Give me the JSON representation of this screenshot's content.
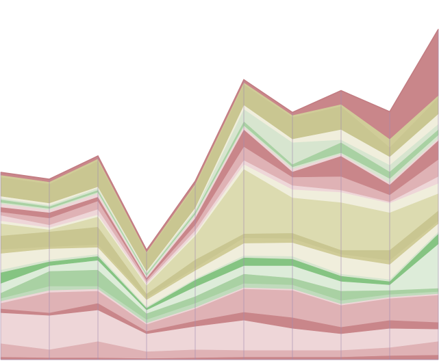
{
  "chart_data": {
    "type": "area",
    "stacked": true,
    "x": [
      0,
      1,
      2,
      3,
      4,
      5,
      6,
      7,
      8,
      9
    ],
    "ylim": [
      0,
      528
    ],
    "series": [
      {
        "color": "#c9868a",
        "values": [
          4,
          3,
          3,
          2,
          3,
          4,
          4,
          4,
          6,
          7
        ]
      },
      {
        "color": "#dfb2b5",
        "values": [
          20,
          12,
          24,
          10,
          12,
          10,
          10,
          10,
          12,
          20
        ]
      },
      {
        "color": "#eed6d8",
        "values": [
          45,
          50,
          46,
          26,
          34,
          44,
          32,
          24,
          28,
          18
        ]
      },
      {
        "color": "#c9868a",
        "values": [
          6,
          4,
          10,
          4,
          8,
          12,
          16,
          10,
          12,
          10
        ]
      },
      {
        "color": "#dfb2b5",
        "values": [
          8,
          30,
          18,
          10,
          18,
          34,
          40,
          32,
          32,
          40
        ]
      },
      {
        "color": "#eed6d8",
        "values": [
          3,
          3,
          3,
          2,
          2,
          2,
          2,
          2,
          2,
          2
        ]
      },
      {
        "color": "#c0dbbc",
        "values": [
          4,
          6,
          4,
          5,
          6,
          6,
          6,
          5,
          4,
          3
        ]
      },
      {
        "color": "#a9d1a3",
        "values": [
          8,
          22,
          24,
          9,
          10,
          14,
          10,
          14,
          6,
          5
        ]
      },
      {
        "color": "#ddecd9",
        "values": [
          14,
          8,
          14,
          5,
          14,
          12,
          18,
          14,
          8,
          65
        ]
      },
      {
        "color": "#85c482",
        "values": [
          16,
          6,
          6,
          3,
          10,
          12,
          10,
          8,
          5,
          15
        ]
      },
      {
        "color": "#d7e5cf",
        "values": [
          4,
          3,
          3,
          2,
          2,
          3,
          4,
          3,
          3,
          3
        ]
      },
      {
        "color": "#f0eedc",
        "values": [
          24,
          16,
          10,
          10,
          12,
          18,
          20,
          25,
          22,
          12
        ]
      },
      {
        "color": "#d0cc98",
        "values": [
          6,
          3,
          4,
          3,
          4,
          8,
          6,
          4,
          6,
          4
        ]
      },
      {
        "color": "#c9c691",
        "values": [
          20,
          22,
          26,
          6,
          12,
          6,
          8,
          6,
          15,
          15
        ]
      },
      {
        "color": "#dcdbb0",
        "values": [
          18,
          3,
          15,
          12,
          35,
          95,
          52,
          70,
          55,
          25
        ]
      },
      {
        "color": "#f0eedc",
        "values": [
          4,
          3,
          3,
          2,
          3,
          7,
          12,
          15,
          14,
          15
        ]
      },
      {
        "color": "#eed6d8",
        "values": [
          8,
          4,
          8,
          3,
          5,
          6,
          6,
          3,
          2,
          10
        ]
      },
      {
        "color": "#dfb2b5",
        "values": [
          5,
          10,
          12,
          3,
          8,
          20,
          12,
          20,
          10,
          25
        ]
      },
      {
        "color": "#c9868a",
        "values": [
          7,
          8,
          6,
          3,
          10,
          25,
          8,
          30,
          15,
          28
        ]
      },
      {
        "color": "#eed6d8",
        "values": [
          5,
          4,
          5,
          2,
          4,
          4,
          4,
          3,
          3,
          3
        ]
      },
      {
        "color": "#d7e5cf",
        "values": [
          2,
          2,
          2,
          2,
          2,
          2,
          3,
          2,
          6,
          5
        ]
      },
      {
        "color": "#a9d1a3",
        "values": [
          4,
          3,
          3,
          2,
          3,
          6,
          4,
          15,
          10,
          8
        ]
      },
      {
        "color": "#d7e5cf",
        "values": [
          2,
          2,
          3,
          2,
          3,
          18,
          32,
          4,
          10,
          8
        ]
      },
      {
        "color": "#f0eedc",
        "values": [
          3,
          3,
          2,
          2,
          3,
          6,
          5,
          15,
          12,
          15
        ]
      },
      {
        "color": "#c9c691",
        "values": [
          28,
          28,
          38,
          26,
          32,
          30,
          32,
          34,
          14,
          24
        ]
      },
      {
        "color": "#d0cc98",
        "values": [
          3,
          3,
          3,
          2,
          3,
          3,
          3,
          3,
          12,
          3
        ]
      },
      {
        "color": "#c9868a",
        "values": [
          4,
          4,
          4,
          3,
          4,
          4,
          4,
          20,
          40,
          97
        ]
      }
    ],
    "outline_color": "#c27c82",
    "gridline_color": "#a08ab0"
  }
}
